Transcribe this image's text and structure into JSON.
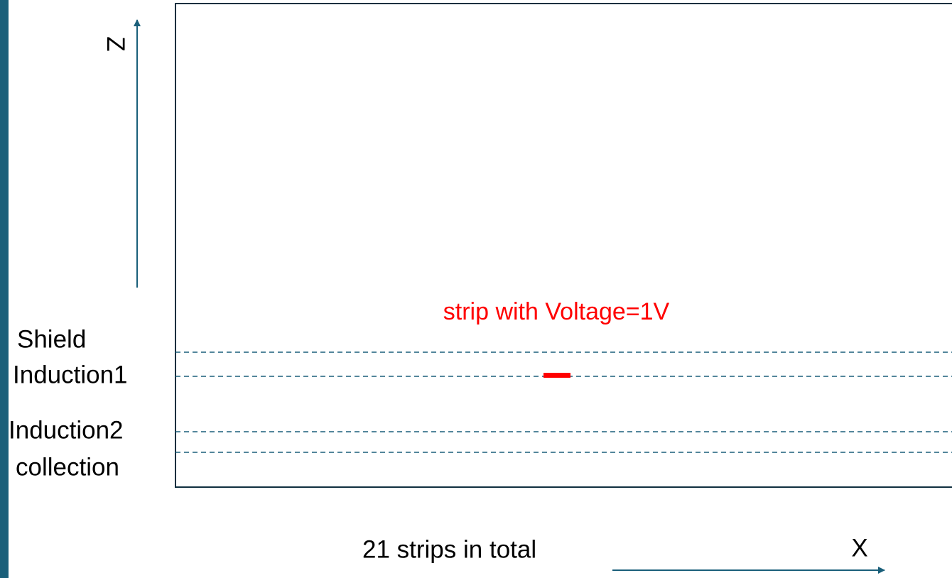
{
  "axes": {
    "z_label": "Z",
    "x_label": "X"
  },
  "layers": [
    {
      "label": "Shield"
    },
    {
      "label": "Induction1"
    },
    {
      "label": "Induction2"
    },
    {
      "label": "collection"
    }
  ],
  "annotation": "strip with Voltage=1V",
  "footer": "21 strips in total"
}
